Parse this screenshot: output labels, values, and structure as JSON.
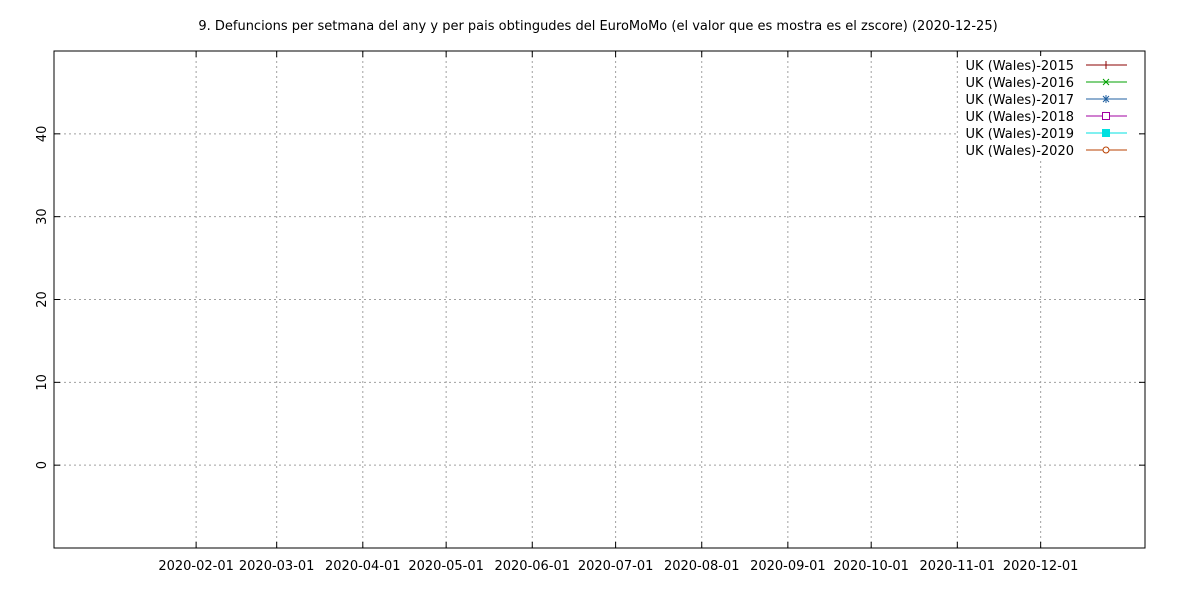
{
  "chart_data": {
    "type": "line",
    "title": "9. Defuncions per setmana del any y per pais obtingudes del EuroMoMo (el valor que es mostra es el zscore) (2020-12-25)",
    "xlabel": "",
    "ylabel": "",
    "x_tick_labels": [
      "2020-02-01",
      "2020-03-01",
      "2020-04-01",
      "2020-05-01",
      "2020-06-01",
      "2020-07-01",
      "2020-08-01",
      "2020-09-01",
      "2020-10-01",
      "2020-11-01",
      "2020-12-01"
    ],
    "xlim": [
      "2020-01-01",
      "2020-12-31"
    ],
    "y_ticks": [
      0,
      10,
      20,
      30,
      40
    ],
    "ylim": [
      -10,
      50
    ],
    "grid": true,
    "legend_position": "top-right",
    "series": [
      {
        "name": "UK (Wales)-2015",
        "color": "#8b0000",
        "marker": "plus",
        "values": []
      },
      {
        "name": "UK (Wales)-2016",
        "color": "#00a000",
        "marker": "cross",
        "values": []
      },
      {
        "name": "UK (Wales)-2017",
        "color": "#1f5fa0",
        "marker": "asterisk",
        "values": []
      },
      {
        "name": "UK (Wales)-2018",
        "color": "#a000a0",
        "marker": "open-square",
        "values": []
      },
      {
        "name": "UK (Wales)-2019",
        "color": "#00e0e0",
        "marker": "filled-square",
        "values": []
      },
      {
        "name": "UK (Wales)-2020",
        "color": "#b84000",
        "marker": "open-circle",
        "values": []
      }
    ]
  }
}
